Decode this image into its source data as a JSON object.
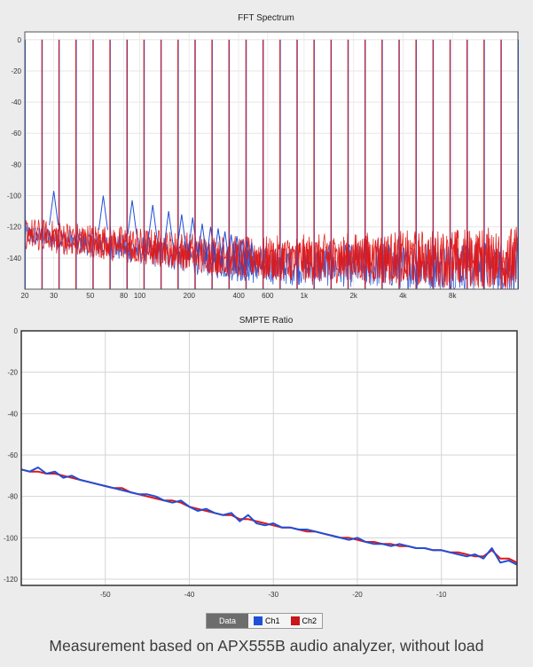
{
  "caption": "Measurement based on APX555B audio analyzer, without load",
  "legend": {
    "header": "Data",
    "ch1": "Ch1",
    "ch2": "Ch2"
  },
  "colors": {
    "ch1": "#1f4fd6",
    "ch2": "#e01818",
    "grid": "#d0d0d0",
    "background": "#ffffff"
  },
  "chart_data": [
    {
      "type": "line",
      "title": "FFT Spectrum",
      "xscale": "log",
      "xlim": [
        20,
        20000
      ],
      "ylim": [
        -160,
        5
      ],
      "yticks": [
        0,
        -20,
        -40,
        -60,
        -80,
        -100,
        -120,
        -140
      ],
      "xticks": [
        {
          "value": 20,
          "label": "20"
        },
        {
          "value": 30,
          "label": "30"
        },
        {
          "value": 50,
          "label": "50"
        },
        {
          "value": 80,
          "label": "80"
        },
        {
          "value": 100,
          "label": "100"
        },
        {
          "value": 200,
          "label": "200"
        },
        {
          "value": 400,
          "label": "400"
        },
        {
          "value": 600,
          "label": "600"
        },
        {
          "value": 1000,
          "label": "1k"
        },
        {
          "value": 2000,
          "label": "2k"
        },
        {
          "value": 4000,
          "label": "4k"
        },
        {
          "value": 8000,
          "label": "8k"
        }
      ],
      "grid": true,
      "fundamental_hz": 20,
      "harmonic_count": 30,
      "harmonic_peak_db": 0,
      "ch1_harmonic_bumps_db": [
        -97,
        -100,
        -103,
        -106,
        -110,
        -112,
        -114,
        -118,
        -120,
        -121,
        -123,
        -125,
        -126,
        -128,
        -129,
        -130
      ],
      "noise_floor_db": {
        "ch1": [
          -125,
          -145
        ],
        "ch2": [
          -122,
          -140
        ]
      },
      "series": [
        {
          "name": "Ch1",
          "color": "#1f4fd6"
        },
        {
          "name": "Ch2",
          "color": "#e01818"
        }
      ]
    },
    {
      "type": "line",
      "title": "SMPTE  Ratio",
      "xlim": [
        -60,
        -1
      ],
      "ylim": [
        -123,
        0
      ],
      "yticks": [
        0,
        -20,
        -40,
        -60,
        -80,
        -100,
        -120
      ],
      "xticks": [
        -50,
        -40,
        -30,
        -20,
        -10
      ],
      "grid": true,
      "series": [
        {
          "name": "Ch1",
          "color": "#1f4fd6",
          "x": [
            -60,
            -59,
            -58,
            -57,
            -56,
            -55,
            -54,
            -53,
            -52,
            -51,
            -50,
            -49,
            -48,
            -47,
            -46,
            -45,
            -44,
            -43,
            -42,
            -41,
            -40,
            -39,
            -38,
            -37,
            -36,
            -35,
            -34,
            -33,
            -32,
            -31,
            -30,
            -29,
            -28,
            -27,
            -26,
            -25,
            -24,
            -23,
            -22,
            -21,
            -20,
            -19,
            -18,
            -17,
            -16,
            -15,
            -14,
            -13,
            -12,
            -11,
            -10,
            -9,
            -8,
            -7,
            -6,
            -5,
            -4,
            -3,
            -2,
            -1
          ],
          "y": [
            -67,
            -68,
            -66,
            -69,
            -68,
            -71,
            -70,
            -72,
            -73,
            -74,
            -75,
            -76,
            -77,
            -78,
            -79,
            -79,
            -80,
            -82,
            -83,
            -82,
            -85,
            -87,
            -86,
            -88,
            -89,
            -88,
            -92,
            -89,
            -93,
            -94,
            -93,
            -95,
            -95,
            -96,
            -96,
            -97,
            -98,
            -99,
            -100,
            -101,
            -100,
            -102,
            -103,
            -103,
            -104,
            -103,
            -104,
            -105,
            -105,
            -106,
            -106,
            -107,
            -108,
            -109,
            -108,
            -110,
            -105,
            -112,
            -111,
            -113
          ]
        },
        {
          "name": "Ch2",
          "color": "#e01818",
          "x": [
            -60,
            -59,
            -58,
            -57,
            -56,
            -55,
            -54,
            -53,
            -52,
            -51,
            -50,
            -49,
            -48,
            -47,
            -46,
            -45,
            -44,
            -43,
            -42,
            -41,
            -40,
            -39,
            -38,
            -37,
            -36,
            -35,
            -34,
            -33,
            -32,
            -31,
            -30,
            -29,
            -28,
            -27,
            -26,
            -25,
            -24,
            -23,
            -22,
            -21,
            -20,
            -19,
            -18,
            -17,
            -16,
            -15,
            -14,
            -13,
            -12,
            -11,
            -10,
            -9,
            -8,
            -7,
            -6,
            -5,
            -4,
            -3,
            -2,
            -1
          ],
          "y": [
            -67,
            -68,
            -68,
            -69,
            -69,
            -70,
            -71,
            -72,
            -73,
            -74,
            -75,
            -76,
            -76,
            -78,
            -79,
            -80,
            -81,
            -82,
            -82,
            -83,
            -85,
            -86,
            -87,
            -88,
            -89,
            -89,
            -91,
            -91,
            -92,
            -93,
            -94,
            -95,
            -95,
            -96,
            -97,
            -97,
            -98,
            -99,
            -100,
            -100,
            -101,
            -102,
            -102,
            -103,
            -103,
            -104,
            -104,
            -105,
            -105,
            -106,
            -106,
            -107,
            -107,
            -108,
            -109,
            -109,
            -106,
            -110,
            -110,
            -112
          ]
        }
      ]
    }
  ]
}
